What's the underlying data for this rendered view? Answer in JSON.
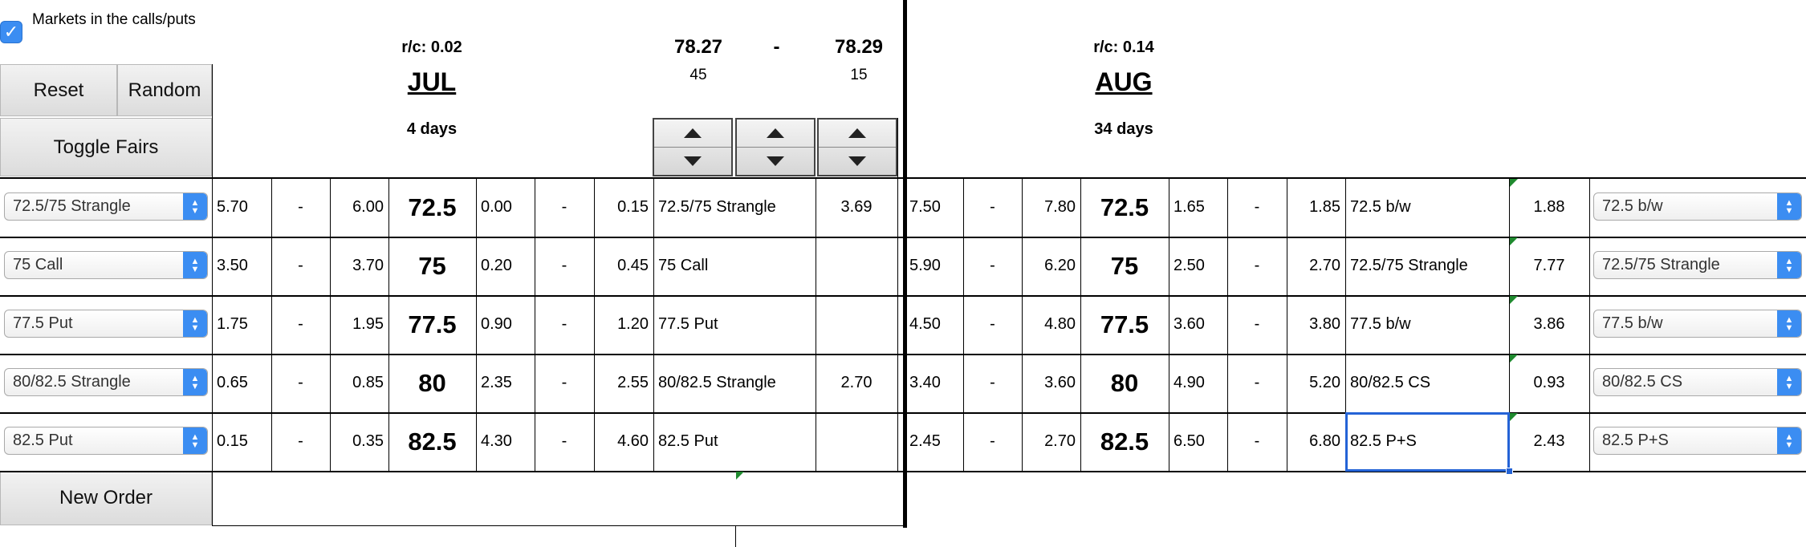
{
  "header": {
    "markets_checkbox": {
      "checked": true,
      "label": "Markets in the calls/puts",
      "check_glyph": "✓"
    },
    "buttons": {
      "reset": "Reset",
      "random": "Random",
      "toggle_fairs": "Toggle Fairs",
      "new_order": "New Order"
    },
    "jul": {
      "rc": "r/c: 0.02",
      "month": "JUL",
      "days": "4 days"
    },
    "aug": {
      "rc": "r/c: 0.14",
      "month": "AUG",
      "days": "34 days"
    },
    "future": {
      "bid": "78.27",
      "dash": "-",
      "ask": "78.29",
      "bid_size": "45",
      "ask_size": "15"
    }
  },
  "colors": {
    "accent": "#3b8df2",
    "active_cell": "#2463d6",
    "corner_mark": "#1f8a2f"
  },
  "dash": "-",
  "rows": [
    {
      "left_select": "72.5/75 Strangle",
      "jul": {
        "call_bid": "5.70",
        "call_ask": "6.00",
        "strike": "72.5",
        "put_bid": "0.00",
        "put_ask": "0.15",
        "structure": "72.5/75 Strangle",
        "fair": "3.69"
      },
      "aug": {
        "call_bid": "7.50",
        "call_ask": "7.80",
        "strike": "72.5",
        "put_bid": "1.65",
        "put_ask": "1.85",
        "structure": "72.5 b/w",
        "fair": "1.88"
      },
      "right_select": "72.5 b/w"
    },
    {
      "left_select": "75 Call",
      "jul": {
        "call_bid": "3.50",
        "call_ask": "3.70",
        "strike": "75",
        "put_bid": "0.20",
        "put_ask": "0.45",
        "structure": "75 Call",
        "fair": ""
      },
      "aug": {
        "call_bid": "5.90",
        "call_ask": "6.20",
        "strike": "75",
        "put_bid": "2.50",
        "put_ask": "2.70",
        "structure": "72.5/75 Strangle",
        "fair": "7.77"
      },
      "right_select": "72.5/75 Strangle"
    },
    {
      "left_select": "77.5 Put",
      "jul": {
        "call_bid": "1.75",
        "call_ask": "1.95",
        "strike": "77.5",
        "put_bid": "0.90",
        "put_ask": "1.20",
        "structure": "77.5 Put",
        "fair": ""
      },
      "aug": {
        "call_bid": "4.50",
        "call_ask": "4.80",
        "strike": "77.5",
        "put_bid": "3.60",
        "put_ask": "3.80",
        "structure": "77.5 b/w",
        "fair": "3.86"
      },
      "right_select": "77.5 b/w"
    },
    {
      "left_select": "80/82.5 Strangle",
      "jul": {
        "call_bid": "0.65",
        "call_ask": "0.85",
        "strike": "80",
        "put_bid": "2.35",
        "put_ask": "2.55",
        "structure": "80/82.5 Strangle",
        "fair": "2.70"
      },
      "aug": {
        "call_bid": "3.40",
        "call_ask": "3.60",
        "strike": "80",
        "put_bid": "4.90",
        "put_ask": "5.20",
        "structure": "80/82.5 CS",
        "fair": "0.93"
      },
      "right_select": "80/82.5 CS"
    },
    {
      "left_select": "82.5 Put",
      "jul": {
        "call_bid": "0.15",
        "call_ask": "0.35",
        "strike": "82.5",
        "put_bid": "4.30",
        "put_ask": "4.60",
        "structure": "82.5 Put",
        "fair": ""
      },
      "aug": {
        "call_bid": "2.45",
        "call_ask": "2.70",
        "strike": "82.5",
        "put_bid": "6.50",
        "put_ask": "6.80",
        "structure": "82.5 P+S",
        "fair": "2.43"
      },
      "right_select": "82.5 P+S"
    }
  ]
}
